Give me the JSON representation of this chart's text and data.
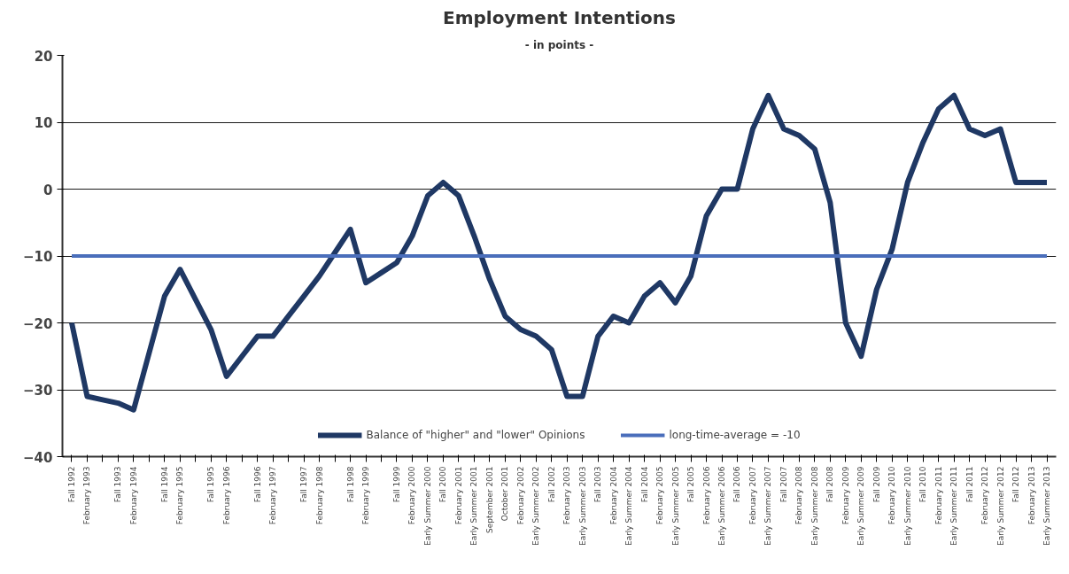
{
  "chart_data": {
    "type": "line",
    "title": "Employment Intentions",
    "subtitle": "- in points -",
    "categories": [
      "Fall 1992",
      "February 1993",
      null,
      "Fall 1993",
      "February 1994",
      null,
      "Fall 1994",
      "February 1995",
      null,
      "Fall 1995",
      "February 1996",
      null,
      "Fall 1996",
      "February 1997",
      null,
      "Fall 1997",
      "February 1998",
      null,
      "Fall 1998",
      "February 1999",
      null,
      "Fall 1999",
      "February 2000",
      "Early Summer 2000",
      "Fall 2000",
      "February 2001",
      "Early Summer 2001",
      "September 2001",
      "October 2001",
      "February 2002",
      "Early Summer 2002",
      "Fall 2002",
      "February 2003",
      "Early Summer 2003",
      "Fall 2003",
      "February 2004",
      "Early Summer 2004",
      "Fall 2004",
      "February 2005",
      "Early Summer 2005",
      "Fall 2005",
      "February 2006",
      "Early Summer 2006",
      "Fall 2006",
      "February 2007",
      "Early Summer 2007",
      "Fall 2007",
      "February 2008",
      "Early Summer 2008",
      "Fall 2008",
      "February 2009",
      "Early Summer 2009",
      "Fall 2009",
      "February 2010",
      "Early Summer 2010",
      "Fall 2010",
      "February 2011",
      "Early Summer 2011",
      "Fall 2011",
      "February 2012",
      "Early Summer 2012",
      "Fall 2012",
      "February 2013",
      "Early Summer 2013"
    ],
    "series": [
      {
        "name": "Balance of \"higher\" and \"lower\" Opinions",
        "color": "#1f3864",
        "values": [
          -20,
          -31,
          -31.5,
          -32,
          -33,
          -24.5,
          -16,
          -12,
          -16.5,
          -21,
          -28,
          -25,
          -22,
          -22,
          -19,
          -16,
          -13,
          -9.5,
          -6,
          -14,
          -12.5,
          -11,
          -7,
          -1,
          1,
          -1,
          -7,
          -13.5,
          -19,
          -21,
          -22,
          -24,
          -31,
          -31,
          -22,
          -19,
          -20,
          -16,
          -14,
          -17,
          -13,
          -4,
          0,
          0,
          9,
          14,
          9,
          8,
          6,
          -2,
          -20,
          -25,
          -15,
          -9,
          1,
          7,
          12,
          14,
          9,
          8,
          9,
          1,
          1,
          1
        ]
      }
    ],
    "ref_lines": [
      {
        "axis": "y",
        "value": -10,
        "label": "long-time-average = -10",
        "color": "#4a6ebb"
      }
    ],
    "ylim": [
      -40,
      20
    ],
    "yticks": [
      -40,
      -30,
      -20,
      -10,
      0,
      10,
      20
    ],
    "grid": "y",
    "legend": "bottom",
    "line_style": "solid",
    "marker": "none"
  }
}
